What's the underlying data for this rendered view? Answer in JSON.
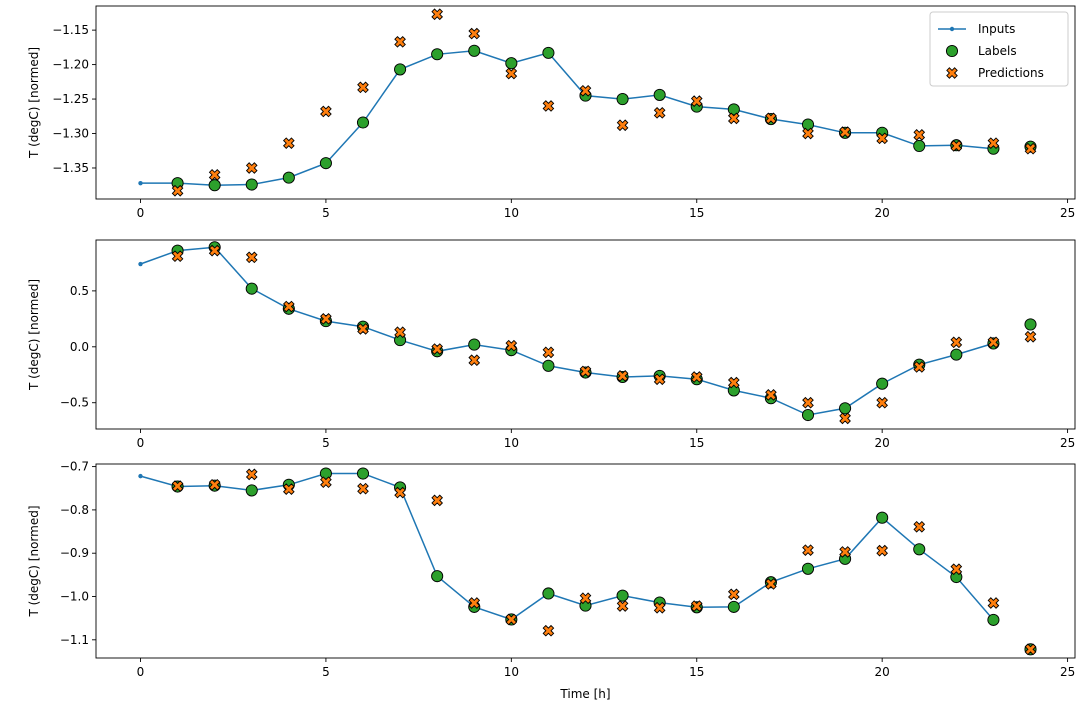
{
  "chart_data": [
    {
      "type": "line",
      "ylabel": "T (degC) [normed]",
      "xlabel": "",
      "xlim": [
        -1.2,
        25.2
      ],
      "ylim": [
        -1.395,
        -1.115
      ],
      "xticks": [
        0,
        5,
        10,
        15,
        20,
        25
      ],
      "yticks": [
        -1.35,
        -1.3,
        -1.25,
        -1.2,
        -1.15
      ],
      "ytick_labels": [
        "−1.35",
        "−1.30",
        "−1.25",
        "−1.20",
        "−1.15"
      ],
      "grid": false,
      "legend": "top-right",
      "series": [
        {
          "name": "Inputs",
          "kind": "line-dot",
          "color": "#1f77b4",
          "x": [
            0,
            1,
            2,
            3,
            4,
            5,
            6,
            7,
            8,
            9,
            10,
            11,
            12,
            13,
            14,
            15,
            16,
            17,
            18,
            19,
            20,
            21,
            22,
            23
          ],
          "y": [
            -1.372,
            -1.372,
            -1.375,
            -1.374,
            -1.364,
            -1.343,
            -1.284,
            -1.207,
            -1.185,
            -1.18,
            -1.198,
            -1.183,
            -1.245,
            -1.25,
            -1.244,
            -1.261,
            -1.265,
            -1.279,
            -1.287,
            -1.299,
            -1.299,
            -1.318,
            -1.317,
            -1.322
          ]
        },
        {
          "name": "Labels",
          "kind": "circle",
          "color": "#2ca02c",
          "x": [
            1,
            2,
            3,
            4,
            5,
            6,
            7,
            8,
            9,
            10,
            11,
            12,
            13,
            14,
            15,
            16,
            17,
            18,
            19,
            20,
            21,
            22,
            23,
            24
          ],
          "y": [
            -1.372,
            -1.375,
            -1.374,
            -1.364,
            -1.343,
            -1.284,
            -1.207,
            -1.185,
            -1.18,
            -1.198,
            -1.183,
            -1.245,
            -1.25,
            -1.244,
            -1.261,
            -1.265,
            -1.279,
            -1.287,
            -1.299,
            -1.299,
            -1.318,
            -1.317,
            -1.322,
            -1.319
          ]
        },
        {
          "name": "Predictions",
          "kind": "x",
          "color": "#ff7f0e",
          "x": [
            1,
            2,
            3,
            4,
            5,
            6,
            7,
            8,
            9,
            10,
            11,
            12,
            13,
            14,
            15,
            16,
            17,
            18,
            19,
            20,
            21,
            22,
            23,
            24
          ],
          "y": [
            -1.383,
            -1.36,
            -1.35,
            -1.314,
            -1.268,
            -1.233,
            -1.167,
            -1.127,
            -1.155,
            -1.213,
            -1.26,
            -1.238,
            -1.288,
            -1.27,
            -1.253,
            -1.278,
            -1.278,
            -1.3,
            -1.298,
            -1.307,
            -1.302,
            -1.318,
            -1.314,
            -1.322
          ]
        }
      ]
    },
    {
      "type": "line",
      "ylabel": "T (degC) [normed]",
      "xlabel": "",
      "xlim": [
        -1.2,
        25.2
      ],
      "ylim": [
        -0.735,
        0.955
      ],
      "xticks": [
        0,
        5,
        10,
        15,
        20,
        25
      ],
      "yticks": [
        -0.5,
        0.0,
        0.5
      ],
      "ytick_labels": [
        "−0.5",
        "0.0",
        "0.5"
      ],
      "grid": false,
      "series": [
        {
          "name": "Inputs",
          "kind": "line-dot",
          "color": "#1f77b4",
          "x": [
            0,
            1,
            2,
            3,
            4,
            5,
            6,
            7,
            8,
            9,
            10,
            11,
            12,
            13,
            14,
            15,
            16,
            17,
            18,
            19,
            20,
            21,
            22,
            23
          ],
          "y": [
            0.74,
            0.86,
            0.89,
            0.52,
            0.34,
            0.23,
            0.18,
            0.06,
            -0.04,
            0.02,
            -0.03,
            -0.17,
            -0.23,
            -0.27,
            -0.26,
            -0.29,
            -0.39,
            -0.46,
            -0.61,
            -0.55,
            -0.33,
            -0.16,
            -0.07,
            0.03
          ]
        },
        {
          "name": "Labels",
          "kind": "circle",
          "color": "#2ca02c",
          "x": [
            1,
            2,
            3,
            4,
            5,
            6,
            7,
            8,
            9,
            10,
            11,
            12,
            13,
            14,
            15,
            16,
            17,
            18,
            19,
            20,
            21,
            22,
            23,
            24
          ],
          "y": [
            0.86,
            0.89,
            0.52,
            0.34,
            0.23,
            0.18,
            0.06,
            -0.04,
            0.02,
            -0.03,
            -0.17,
            -0.23,
            -0.27,
            -0.26,
            -0.29,
            -0.39,
            -0.46,
            -0.61,
            -0.55,
            -0.33,
            -0.16,
            -0.07,
            0.03,
            0.2
          ]
        },
        {
          "name": "Predictions",
          "kind": "x",
          "color": "#ff7f0e",
          "x": [
            1,
            2,
            3,
            4,
            5,
            6,
            7,
            8,
            9,
            10,
            11,
            12,
            13,
            14,
            15,
            16,
            17,
            18,
            19,
            20,
            21,
            22,
            23,
            24
          ],
          "y": [
            0.81,
            0.86,
            0.8,
            0.36,
            0.25,
            0.16,
            0.13,
            -0.02,
            -0.12,
            0.01,
            -0.05,
            -0.22,
            -0.26,
            -0.29,
            -0.27,
            -0.32,
            -0.43,
            -0.5,
            -0.64,
            -0.5,
            -0.18,
            0.04,
            0.04,
            0.09
          ]
        }
      ]
    },
    {
      "type": "line",
      "ylabel": "T (degC) [normed]",
      "xlabel": "Time [h]",
      "xlim": [
        -1.2,
        25.2
      ],
      "ylim": [
        -1.142,
        -0.694
      ],
      "xticks": [
        0,
        5,
        10,
        15,
        20,
        25
      ],
      "yticks": [
        -1.1,
        -1.0,
        -0.9,
        -0.8,
        -0.7
      ],
      "ytick_labels": [
        "−1.1",
        "−1.0",
        "−0.9",
        "−0.8",
        "−0.7"
      ],
      "grid": false,
      "series": [
        {
          "name": "Inputs",
          "kind": "line-dot",
          "color": "#1f77b4",
          "x": [
            0,
            1,
            2,
            3,
            4,
            5,
            6,
            7,
            8,
            9,
            10,
            11,
            12,
            13,
            14,
            15,
            16,
            17,
            18,
            19,
            20,
            21,
            22,
            23
          ],
          "y": [
            -0.722,
            -0.746,
            -0.744,
            -0.755,
            -0.742,
            -0.716,
            -0.716,
            -0.748,
            -0.953,
            -1.024,
            -1.053,
            -0.993,
            -1.021,
            -0.998,
            -1.014,
            -1.025,
            -1.024,
            -0.967,
            -0.936,
            -0.913,
            -0.818,
            -0.891,
            -0.955,
            -1.054
          ]
        },
        {
          "name": "Labels",
          "kind": "circle",
          "color": "#2ca02c",
          "x": [
            1,
            2,
            3,
            4,
            5,
            6,
            7,
            8,
            9,
            10,
            11,
            12,
            13,
            14,
            15,
            16,
            17,
            18,
            19,
            20,
            21,
            22,
            23,
            24
          ],
          "y": [
            -0.746,
            -0.744,
            -0.755,
            -0.742,
            -0.716,
            -0.716,
            -0.748,
            -0.953,
            -1.024,
            -1.053,
            -0.993,
            -1.021,
            -0.998,
            -1.014,
            -1.025,
            -1.024,
            -0.967,
            -0.936,
            -0.913,
            -0.818,
            -0.891,
            -0.955,
            -1.054,
            -1.122
          ]
        },
        {
          "name": "Predictions",
          "kind": "x",
          "color": "#ff7f0e",
          "x": [
            1,
            2,
            3,
            4,
            5,
            6,
            7,
            8,
            9,
            10,
            11,
            12,
            13,
            14,
            15,
            16,
            17,
            18,
            19,
            20,
            21,
            22,
            23,
            24
          ],
          "y": [
            -0.745,
            -0.742,
            -0.718,
            -0.752,
            -0.736,
            -0.751,
            -0.76,
            -0.778,
            -1.015,
            -1.053,
            -1.079,
            -1.004,
            -1.022,
            -1.026,
            -1.022,
            -0.995,
            -0.971,
            -0.893,
            -0.897,
            -0.894,
            -0.839,
            -0.937,
            -1.015,
            -1.122
          ]
        }
      ]
    }
  ]
}
